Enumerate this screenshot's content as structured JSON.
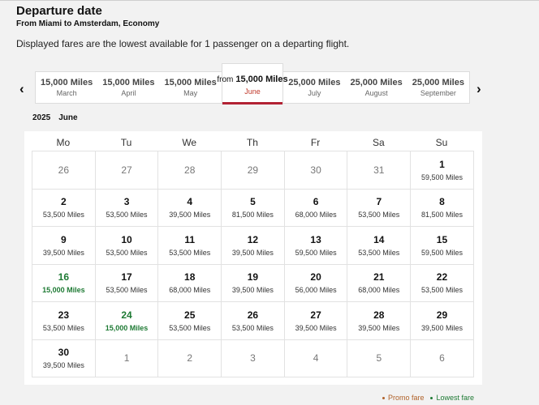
{
  "header": {
    "title": "Departure date",
    "subtitle": "From Miami to Amsterdam, Economy",
    "note": "Displayed fares are the lowest available for 1 passenger on a departing flight."
  },
  "month_nav": {
    "prev_icon": "chevron-left-icon",
    "next_icon": "chevron-right-icon",
    "months": [
      {
        "fare": "15,000 Miles",
        "name": "March"
      },
      {
        "fare": "15,000 Miles",
        "name": "April"
      },
      {
        "fare": "15,000 Miles",
        "name": "May"
      },
      {
        "prefix": "from",
        "fare": "15,000 Miles",
        "name": "June",
        "selected": true
      },
      {
        "fare": "25,000 Miles",
        "name": "July"
      },
      {
        "fare": "25,000 Miles",
        "name": "August"
      },
      {
        "fare": "25,000 Miles",
        "name": "September"
      }
    ]
  },
  "calendar": {
    "year": "2025",
    "month": "June",
    "weekdays": [
      "Mo",
      "Tu",
      "We",
      "Th",
      "Fr",
      "Sa",
      "Su"
    ],
    "days": [
      {
        "day": "26",
        "other": true
      },
      {
        "day": "27",
        "other": true
      },
      {
        "day": "28",
        "other": true
      },
      {
        "day": "29",
        "other": true
      },
      {
        "day": "30",
        "other": true
      },
      {
        "day": "31",
        "other": true
      },
      {
        "day": "1",
        "miles": "59,500 Miles"
      },
      {
        "day": "2",
        "miles": "53,500 Miles"
      },
      {
        "day": "3",
        "miles": "53,500 Miles"
      },
      {
        "day": "4",
        "miles": "39,500 Miles"
      },
      {
        "day": "5",
        "miles": "81,500 Miles"
      },
      {
        "day": "6",
        "miles": "68,000 Miles"
      },
      {
        "day": "7",
        "miles": "53,500 Miles"
      },
      {
        "day": "8",
        "miles": "81,500 Miles"
      },
      {
        "day": "9",
        "miles": "39,500 Miles"
      },
      {
        "day": "10",
        "miles": "53,500 Miles"
      },
      {
        "day": "11",
        "miles": "53,500 Miles"
      },
      {
        "day": "12",
        "miles": "39,500 Miles"
      },
      {
        "day": "13",
        "miles": "59,500 Miles"
      },
      {
        "day": "14",
        "miles": "53,500 Miles"
      },
      {
        "day": "15",
        "miles": "59,500 Miles"
      },
      {
        "day": "16",
        "miles": "15,000 Miles",
        "lowest": true
      },
      {
        "day": "17",
        "miles": "53,500 Miles"
      },
      {
        "day": "18",
        "miles": "68,000 Miles"
      },
      {
        "day": "19",
        "miles": "39,500 Miles"
      },
      {
        "day": "20",
        "miles": "56,000 Miles"
      },
      {
        "day": "21",
        "miles": "68,000 Miles"
      },
      {
        "day": "22",
        "miles": "53,500 Miles"
      },
      {
        "day": "23",
        "miles": "53,500 Miles"
      },
      {
        "day": "24",
        "miles": "15,000 Miles",
        "lowest": true
      },
      {
        "day": "25",
        "miles": "53,500 Miles"
      },
      {
        "day": "26",
        "miles": "53,500 Miles"
      },
      {
        "day": "27",
        "miles": "39,500 Miles"
      },
      {
        "day": "28",
        "miles": "39,500 Miles"
      },
      {
        "day": "29",
        "miles": "39,500 Miles"
      },
      {
        "day": "30",
        "miles": "39,500 Miles"
      },
      {
        "day": "1",
        "other": true
      },
      {
        "day": "2",
        "other": true
      },
      {
        "day": "3",
        "other": true
      },
      {
        "day": "4",
        "other": true
      },
      {
        "day": "5",
        "other": true
      },
      {
        "day": "6",
        "other": true
      }
    ]
  },
  "legend": {
    "promo": "Promo fare",
    "lowest": "Lowest fare",
    "promo_color": "#b0622a",
    "lowest_color": "#1e7a34"
  },
  "colors": {
    "accent": "#b22234",
    "lowest_fare": "#1e7a34"
  }
}
